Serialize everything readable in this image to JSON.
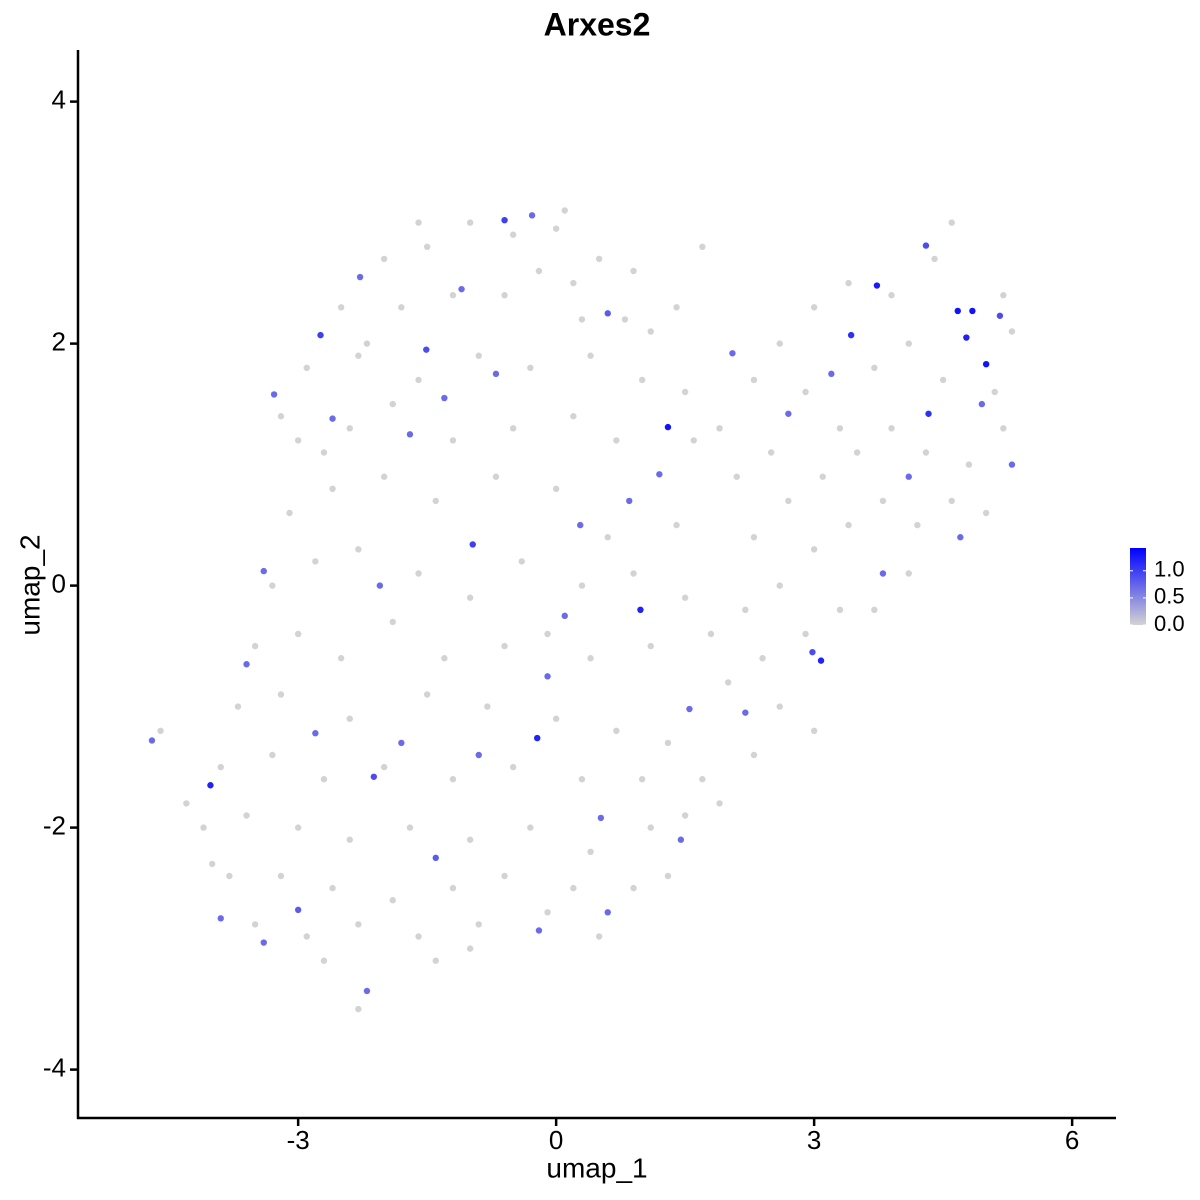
{
  "chart_data": {
    "type": "scatter",
    "title": "Arxes2",
    "x_label": "umap_1",
    "y_label": "umap_2",
    "x": [
      -2.0,
      -1.5,
      -1.0,
      -0.5,
      0.0,
      0.5,
      0.9,
      -2.5,
      -1.8,
      -1.2,
      -0.6,
      0.2,
      0.8,
      1.1,
      -2.9,
      -2.3,
      -1.6,
      -0.9,
      -0.3,
      0.4,
      1.0,
      1.5,
      -3.0,
      -2.4,
      -1.9,
      -1.2,
      -0.5,
      0.2,
      0.7,
      1.6,
      -3.1,
      -2.6,
      -2.0,
      -1.4,
      -0.7,
      0.0,
      0.6,
      1.4,
      -3.3,
      -2.8,
      -2.3,
      -1.6,
      -1.0,
      -0.4,
      0.3,
      0.9,
      1.5,
      -3.5,
      -3.0,
      -2.5,
      -1.9,
      -1.3,
      -0.6,
      0.4,
      1.1,
      1.8,
      -3.7,
      -3.2,
      -2.4,
      -1.5,
      -0.8,
      0.0,
      0.7,
      1.3,
      2.0,
      -3.9,
      -3.3,
      -2.7,
      -2.0,
      -1.2,
      -0.5,
      0.3,
      1.0,
      1.7,
      -4.1,
      -3.6,
      -3.0,
      -2.4,
      -1.7,
      -1.0,
      -0.3,
      0.4,
      1.1,
      -3.8,
      -3.2,
      -2.6,
      -1.9,
      -1.2,
      -0.6,
      0.2,
      0.9,
      -3.5,
      -2.9,
      -2.3,
      -1.6,
      -0.9,
      -0.1,
      0.5,
      -2.7,
      -2.3,
      -1.0,
      -1.4,
      -4.6,
      -4.3,
      -4.0,
      1.9,
      2.3,
      2.6,
      3.0,
      3.4,
      3.9,
      4.4,
      4.6,
      5.2,
      5.3,
      2.1,
      2.5,
      2.9,
      3.3,
      3.7,
      4.1,
      4.5,
      5.1,
      2.3,
      2.7,
      3.1,
      3.5,
      3.9,
      4.3,
      4.8,
      5.2,
      2.2,
      2.6,
      3.0,
      3.4,
      3.8,
      4.2,
      4.6,
      5.0,
      2.4,
      2.9,
      3.3,
      3.7,
      4.1,
      2.6,
      3.0,
      2.3,
      1.9,
      1.5,
      1.3,
      0.1,
      1.7,
      1.4,
      0.3,
      -0.2,
      -1.6,
      -2.2,
      -3.2,
      -2.7,
      -0.1,
      1.3,
      0.98,
      -0.22,
      3.08,
      3.73,
      4.67,
      4.84,
      4.77,
      5.0,
      4.33,
      -4.02,
      3.43,
      -0.6,
      -2.74,
      -0.97,
      2.98,
      5.16,
      4.3,
      -1.51,
      -2.12,
      -3.0,
      -1.4,
      0.6,
      -0.28,
      -0.7,
      0.28,
      -2.28,
      -3.28,
      -2.05,
      -1.7,
      -1.1,
      -3.6,
      -2.8,
      -1.8,
      -0.1,
      0.52,
      1.55,
      2.05,
      3.2,
      4.1,
      4.7,
      5.3,
      3.8,
      2.2,
      1.45,
      0.6,
      -0.2,
      -2.2,
      -3.4,
      -3.9,
      -4.7,
      -3.4,
      -2.6,
      0.85,
      1.2,
      -0.9,
      0.1,
      -1.3,
      2.7,
      4.95
    ],
    "y": [
      2.7,
      2.8,
      3.0,
      2.9,
      2.95,
      2.7,
      2.6,
      2.3,
      2.3,
      2.4,
      2.4,
      2.5,
      2.2,
      2.1,
      1.8,
      1.9,
      1.7,
      1.9,
      1.8,
      1.9,
      1.7,
      1.6,
      1.2,
      1.3,
      1.5,
      1.2,
      1.3,
      1.4,
      1.2,
      1.2,
      0.6,
      0.8,
      0.9,
      0.7,
      0.9,
      0.8,
      0.4,
      0.5,
      0.0,
      0.2,
      0.3,
      0.1,
      -0.1,
      0.2,
      0.0,
      0.1,
      -0.1,
      -0.5,
      -0.4,
      -0.6,
      -0.3,
      -0.6,
      -0.5,
      -0.6,
      -0.5,
      -0.4,
      -1.0,
      -0.9,
      -1.1,
      -0.9,
      -1.0,
      -1.1,
      -1.2,
      -1.3,
      -0.8,
      -1.5,
      -1.4,
      -1.6,
      -1.5,
      -1.6,
      -1.5,
      -1.6,
      -1.6,
      -1.6,
      -2.0,
      -1.9,
      -2.0,
      -2.1,
      -2.0,
      -2.1,
      -2.0,
      -2.2,
      -2.0,
      -2.4,
      -2.4,
      -2.5,
      -2.6,
      -2.5,
      -2.4,
      -2.5,
      -2.5,
      -2.8,
      -2.9,
      -2.8,
      -2.9,
      -2.8,
      -2.7,
      -2.9,
      -3.1,
      -3.5,
      -3.0,
      -3.1,
      -1.2,
      -1.8,
      -2.3,
      1.3,
      1.7,
      2.0,
      2.3,
      2.5,
      2.4,
      2.7,
      3.0,
      2.4,
      2.1,
      0.9,
      1.1,
      1.6,
      1.3,
      1.8,
      2.0,
      1.7,
      1.6,
      0.4,
      0.7,
      0.9,
      1.1,
      1.3,
      1.1,
      1.0,
      1.3,
      -0.2,
      0.0,
      0.3,
      0.5,
      0.7,
      0.5,
      0.7,
      0.6,
      -0.6,
      -0.4,
      -0.2,
      -0.2,
      0.1,
      -1.0,
      -1.2,
      -1.4,
      -1.8,
      -1.9,
      -2.4,
      3.1,
      2.8,
      2.3,
      2.2,
      2.6,
      3.0,
      2.0,
      1.4,
      1.1,
      -0.4,
      1.31,
      -0.2,
      -1.26,
      -0.62,
      2.48,
      2.27,
      2.27,
      2.05,
      1.83,
      1.42,
      -1.65,
      2.07,
      3.02,
      2.07,
      0.34,
      -0.55,
      2.23,
      2.81,
      1.95,
      -1.58,
      -2.68,
      -2.25,
      2.25,
      3.06,
      1.75,
      0.5,
      2.55,
      1.58,
      0.0,
      1.25,
      2.45,
      -0.65,
      -1.22,
      -1.3,
      -0.75,
      -1.92,
      -1.02,
      1.92,
      1.75,
      0.9,
      0.4,
      1.0,
      0.1,
      -1.05,
      -2.1,
      -2.7,
      -2.85,
      -3.35,
      -2.95,
      -2.75,
      -1.28,
      0.12,
      1.38,
      0.7,
      0.92,
      -1.4,
      -0.25,
      1.55,
      1.42,
      1.5
    ],
    "expression": [
      0,
      0,
      0,
      0,
      0,
      0,
      0,
      0,
      0,
      0,
      0,
      0,
      0,
      0,
      0,
      0,
      0,
      0,
      0,
      0,
      0,
      0,
      0,
      0,
      0,
      0,
      0,
      0,
      0,
      0,
      0,
      0,
      0,
      0,
      0,
      0,
      0,
      0,
      0,
      0,
      0,
      0,
      0,
      0,
      0,
      0,
      0,
      0,
      0,
      0,
      0,
      0,
      0,
      0,
      0,
      0,
      0,
      0,
      0,
      0,
      0,
      0,
      0,
      0,
      0,
      0,
      0,
      0,
      0,
      0,
      0,
      0,
      0,
      0,
      0,
      0,
      0,
      0,
      0,
      0,
      0,
      0,
      0,
      0,
      0,
      0,
      0,
      0,
      0,
      0,
      0,
      0,
      0,
      0,
      0,
      0,
      0,
      0,
      0,
      0,
      0,
      0,
      0,
      0,
      0,
      0,
      0,
      0,
      0,
      0,
      0,
      0,
      0,
      0,
      0,
      0,
      0,
      0,
      0,
      0,
      0,
      0,
      0,
      0,
      0,
      0,
      0,
      0,
      0,
      0,
      0,
      0,
      0,
      0,
      0,
      0,
      0,
      0,
      0,
      0,
      0,
      0,
      0,
      0,
      0,
      0,
      0,
      0,
      0,
      0,
      0,
      0,
      0,
      0,
      0,
      0,
      0,
      0,
      0,
      0,
      1.3,
      1.2,
      1.2,
      1.2,
      1.25,
      1.3,
      1.3,
      1.2,
      1.3,
      1.1,
      1.2,
      1.1,
      1.0,
      1.0,
      1.0,
      0.9,
      0.9,
      0.9,
      0.9,
      0.9,
      0.8,
      0.8,
      0.8,
      0.7,
      0.7,
      0.7,
      0.7,
      0.7,
      0.7,
      0.7,
      0.7,
      0.7,
      0.7,
      0.7,
      0.7,
      0.7,
      0.7,
      0.7,
      0.7,
      0.7,
      0.7,
      0.7,
      0.7,
      0.7,
      0.7,
      0.7,
      0.7,
      0.7,
      0.7,
      0.7,
      0.7,
      0.7,
      0.7,
      0.7,
      0.7,
      0.7,
      0.7,
      0.7,
      0.7,
      0.7
    ],
    "xlim": [
      -5.56,
      6.51
    ],
    "ylim": [
      -4.4,
      4.41
    ],
    "xticks": [
      -3,
      0,
      3,
      6
    ],
    "yticks": [
      -4,
      -2,
      0,
      2,
      4
    ],
    "grid": false,
    "colorbar": {
      "low": "#d3d3d3",
      "high": "#0000ff",
      "lim": [
        0,
        1.42
      ],
      "ticks": [
        {
          "value": 0,
          "label": "0.0"
        },
        0.5,
        {
          "value": 1,
          "label": "1.0"
        }
      ]
    }
  }
}
